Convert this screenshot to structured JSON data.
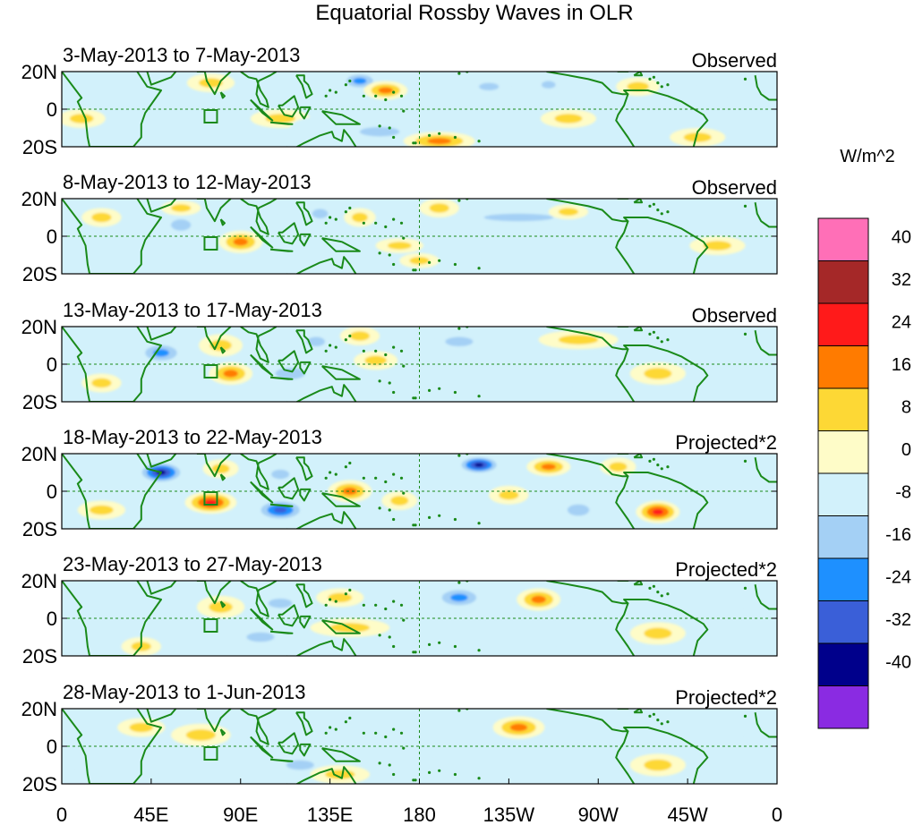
{
  "chart_data": {
    "type": "heatmap",
    "title": "Equatorial Rossby Waves in OLR",
    "units_label": "W/m^2",
    "x_ticks": [
      "0",
      "45E",
      "90E",
      "135E",
      "180",
      "135W",
      "90W",
      "45W",
      "0"
    ],
    "y_ticks": [
      "20N",
      "0",
      "20S"
    ],
    "colorbar": {
      "levels": [
        -40,
        -32,
        -24,
        -16,
        -8,
        0,
        8,
        16,
        24,
        32,
        40
      ],
      "tick_labels": [
        "-40",
        "-32",
        "-24",
        "-16",
        "-8",
        "0",
        "8",
        "16",
        "24",
        "32",
        "40"
      ],
      "colors": [
        "#8a2be2",
        "#00008b",
        "#3a5fd8",
        "#1e90ff",
        "#a4d0f5",
        "#d2f1fb",
        "#fefcc8",
        "#fdd835",
        "#ff7b00",
        "#ff1a1a",
        "#a52828",
        "#ff6fb7"
      ]
    },
    "panels": [
      {
        "period": "3-May-2013 to 7-May-2013",
        "status": "Observed",
        "blobs": [
          [
            150,
            15,
            10,
            5,
            -20
          ],
          [
            163,
            10,
            11,
            5,
            24
          ],
          [
            215,
            12,
            10,
            4,
            -16
          ],
          [
            290,
            12,
            11,
            5,
            16
          ],
          [
            255,
            -5,
            14,
            5,
            16
          ],
          [
            160,
            -12,
            20,
            5,
            -16
          ],
          [
            190,
            -17,
            18,
            5,
            24
          ],
          [
            75,
            14,
            12,
            5,
            16
          ],
          [
            110,
            -5,
            15,
            5,
            16
          ],
          [
            55,
            -5,
            10,
            6,
            -8
          ],
          [
            245,
            13,
            7,
            4,
            -16
          ],
          [
            320,
            -15,
            14,
            5,
            16
          ],
          [
            10,
            -5,
            12,
            5,
            16
          ],
          [
            35,
            10,
            12,
            5,
            -8
          ],
          [
            130,
            -10,
            15,
            6,
            -8
          ],
          [
            200,
            5,
            25,
            5,
            -8
          ],
          [
            335,
            10,
            15,
            5,
            -8
          ]
        ]
      },
      {
        "period": "8-May-2013 to 12-May-2013",
        "status": "Observed",
        "blobs": [
          [
            60,
            6,
            10,
            6,
            -16
          ],
          [
            90,
            -3,
            11,
            6,
            24
          ],
          [
            100,
            8,
            9,
            5,
            -8
          ],
          [
            130,
            12,
            8,
            5,
            -16
          ],
          [
            150,
            10,
            8,
            5,
            16
          ],
          [
            170,
            5,
            11,
            6,
            -8
          ],
          [
            190,
            15,
            10,
            5,
            16
          ],
          [
            230,
            10,
            35,
            4,
            -16
          ],
          [
            255,
            13,
            10,
            4,
            16
          ],
          [
            170,
            -5,
            12,
            4,
            16
          ],
          [
            180,
            -13,
            10,
            4,
            16
          ],
          [
            60,
            15,
            10,
            4,
            16
          ],
          [
            20,
            10,
            10,
            5,
            16
          ],
          [
            290,
            10,
            14,
            5,
            -8
          ],
          [
            330,
            -5,
            14,
            5,
            16
          ],
          [
            115,
            -10,
            15,
            5,
            -8
          ],
          [
            280,
            -12,
            20,
            5,
            -8
          ]
        ]
      },
      {
        "period": "13-May-2013 to 17-May-2013",
        "status": "Observed",
        "blobs": [
          [
            50,
            6,
            12,
            6,
            -24
          ],
          [
            80,
            10,
            11,
            6,
            16
          ],
          [
            85,
            -5,
            11,
            6,
            24
          ],
          [
            115,
            -5,
            15,
            6,
            -16
          ],
          [
            128,
            12,
            9,
            5,
            -16
          ],
          [
            150,
            15,
            10,
            5,
            16
          ],
          [
            158,
            2,
            11,
            5,
            16
          ],
          [
            200,
            12,
            14,
            5,
            -16
          ],
          [
            260,
            13,
            20,
            5,
            16
          ],
          [
            205,
            -5,
            25,
            5,
            -8
          ],
          [
            300,
            -5,
            14,
            6,
            16
          ],
          [
            330,
            10,
            14,
            5,
            -8
          ],
          [
            20,
            -10,
            10,
            5,
            16
          ],
          [
            170,
            -15,
            15,
            5,
            -8
          ],
          [
            240,
            -10,
            20,
            5,
            -8
          ]
        ]
      },
      {
        "period": "18-May-2013 to 22-May-2013",
        "status": "Projected*2",
        "blobs": [
          [
            50,
            10,
            12,
            6,
            -40
          ],
          [
            75,
            -6,
            13,
            6,
            32
          ],
          [
            80,
            12,
            9,
            5,
            16
          ],
          [
            110,
            -10,
            13,
            6,
            -32
          ],
          [
            110,
            9,
            9,
            5,
            -16
          ],
          [
            145,
            0,
            11,
            6,
            24
          ],
          [
            170,
            -5,
            9,
            5,
            16
          ],
          [
            145,
            13,
            9,
            5,
            -8
          ],
          [
            210,
            14,
            11,
            5,
            -40
          ],
          [
            245,
            13,
            11,
            5,
            24
          ],
          [
            225,
            -2,
            10,
            5,
            16
          ],
          [
            280,
            13,
            9,
            5,
            16
          ],
          [
            300,
            -11,
            11,
            6,
            32
          ],
          [
            260,
            -10,
            11,
            6,
            -16
          ],
          [
            20,
            -10,
            12,
            5,
            16
          ],
          [
            180,
            5,
            14,
            5,
            -8
          ],
          [
            330,
            5,
            14,
            5,
            -8
          ]
        ]
      },
      {
        "period": "23-May-2013 to 27-May-2013",
        "status": "Projected*2",
        "blobs": [
          [
            80,
            6,
            12,
            6,
            16
          ],
          [
            110,
            8,
            12,
            5,
            -16
          ],
          [
            100,
            -10,
            14,
            5,
            -16
          ],
          [
            145,
            -5,
            20,
            5,
            16
          ],
          [
            140,
            11,
            12,
            5,
            16
          ],
          [
            200,
            11,
            13,
            6,
            -24
          ],
          [
            240,
            10,
            11,
            6,
            24
          ],
          [
            270,
            10,
            14,
            6,
            -8
          ],
          [
            190,
            -5,
            14,
            5,
            -8
          ],
          [
            300,
            -8,
            14,
            6,
            16
          ],
          [
            40,
            -15,
            10,
            5,
            16
          ],
          [
            20,
            12,
            10,
            5,
            -8
          ],
          [
            330,
            5,
            14,
            5,
            -8
          ],
          [
            230,
            -15,
            20,
            5,
            -8
          ]
        ]
      },
      {
        "period": "28-May-2013 to 1-Jun-2013",
        "status": "Projected*2",
        "blobs": [
          [
            70,
            6,
            15,
            6,
            16
          ],
          [
            110,
            10,
            14,
            5,
            -8
          ],
          [
            120,
            -10,
            14,
            5,
            -16
          ],
          [
            140,
            -15,
            15,
            5,
            16
          ],
          [
            200,
            12,
            15,
            5,
            -8
          ],
          [
            230,
            10,
            13,
            6,
            24
          ],
          [
            190,
            -10,
            15,
            5,
            -8
          ],
          [
            270,
            -5,
            15,
            6,
            -8
          ],
          [
            300,
            -10,
            14,
            6,
            16
          ],
          [
            40,
            10,
            12,
            5,
            16
          ],
          [
            330,
            5,
            14,
            5,
            -8
          ],
          [
            20,
            -12,
            12,
            5,
            -8
          ]
        ]
      }
    ]
  }
}
